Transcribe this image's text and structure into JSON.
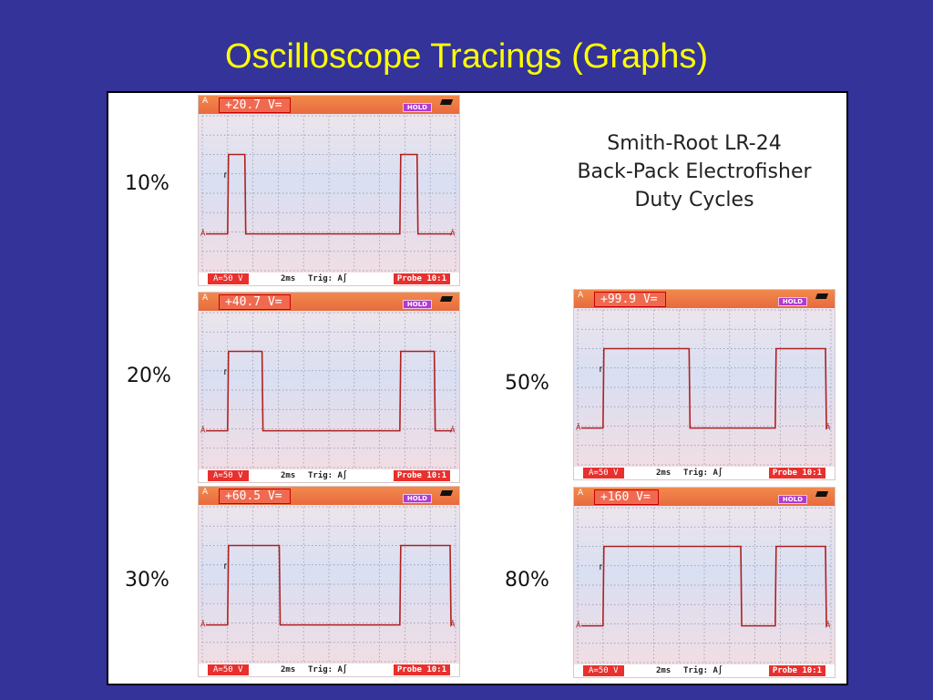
{
  "slide": {
    "title": "Oscilloscope Tracings (Graphs)"
  },
  "caption": {
    "lines": [
      "Smith-Root LR-24",
      "Back-Pack Electrofisher",
      "Duty Cycles"
    ]
  },
  "colors": {
    "background": "#333399",
    "title": "#ffff00",
    "trace": "#b02020",
    "grid": "#8f8fa6"
  },
  "scopes": [
    {
      "duty_label": "10%",
      "readout": "+20.7 V=",
      "channel": "A",
      "hold": "HOLD",
      "range": "A=50 V",
      "timebase": "2ms",
      "trigger": "Trig: A∫",
      "probe": "Probe 10:1"
    },
    {
      "duty_label": "20%",
      "readout": "+40.7 V=",
      "channel": "A",
      "hold": "HOLD",
      "range": "A=50 V",
      "timebase": "2ms",
      "trigger": "Trig: A∫",
      "probe": "Probe 10:1"
    },
    {
      "duty_label": "30%",
      "readout": "+60.5 V=",
      "channel": "A",
      "hold": "HOLD",
      "range": "A=50 V",
      "timebase": "2ms",
      "trigger": "Trig: A∫",
      "probe": "Probe 10:1"
    },
    {
      "duty_label": "50%",
      "readout": "+99.9 V=",
      "channel": "A",
      "hold": "HOLD",
      "range": "A=50 V",
      "timebase": "2ms",
      "trigger": "Trig: A∫",
      "probe": "Probe 10:1"
    },
    {
      "duty_label": "80%",
      "readout": "+160 V=",
      "channel": "A",
      "hold": "HOLD",
      "range": "A=50 V",
      "timebase": "2ms",
      "trigger": "Trig: A∫",
      "probe": "Probe 10:1"
    }
  ],
  "chart_data": [
    {
      "type": "line",
      "title": "10%",
      "duty_cycle": 0.1,
      "ylabel": "V",
      "waveform": "square",
      "high_v": 207,
      "low_v": 0,
      "pulse_starts_div": [
        1.0,
        7.8
      ],
      "pulse_width_div": 0.68,
      "x_divisions": 10,
      "grid": true
    },
    {
      "type": "line",
      "title": "20%",
      "duty_cycle": 0.2,
      "ylabel": "V",
      "waveform": "square",
      "high_v": 203.5,
      "low_v": 0,
      "pulse_starts_div": [
        1.0,
        7.8
      ],
      "pulse_width_div": 1.36,
      "x_divisions": 10,
      "grid": true
    },
    {
      "type": "line",
      "title": "30%",
      "duty_cycle": 0.3,
      "ylabel": "V",
      "waveform": "square",
      "high_v": 201.7,
      "low_v": 0,
      "pulse_starts_div": [
        1.0,
        7.8
      ],
      "pulse_width_div": 2.04,
      "x_divisions": 10,
      "grid": true
    },
    {
      "type": "line",
      "title": "50%",
      "duty_cycle": 0.5,
      "ylabel": "V",
      "waveform": "square",
      "high_v": 199.8,
      "low_v": 0,
      "pulse_starts_div": [
        1.0,
        7.8
      ],
      "pulse_width_div": 3.4,
      "x_divisions": 10,
      "grid": true
    },
    {
      "type": "line",
      "title": "80%",
      "duty_cycle": 0.8,
      "ylabel": "V",
      "waveform": "square",
      "high_v": 200,
      "low_v": 0,
      "pulse_starts_div": [
        1.0,
        7.8
      ],
      "pulse_width_div": 5.44,
      "x_divisions": 10,
      "grid": true
    }
  ]
}
